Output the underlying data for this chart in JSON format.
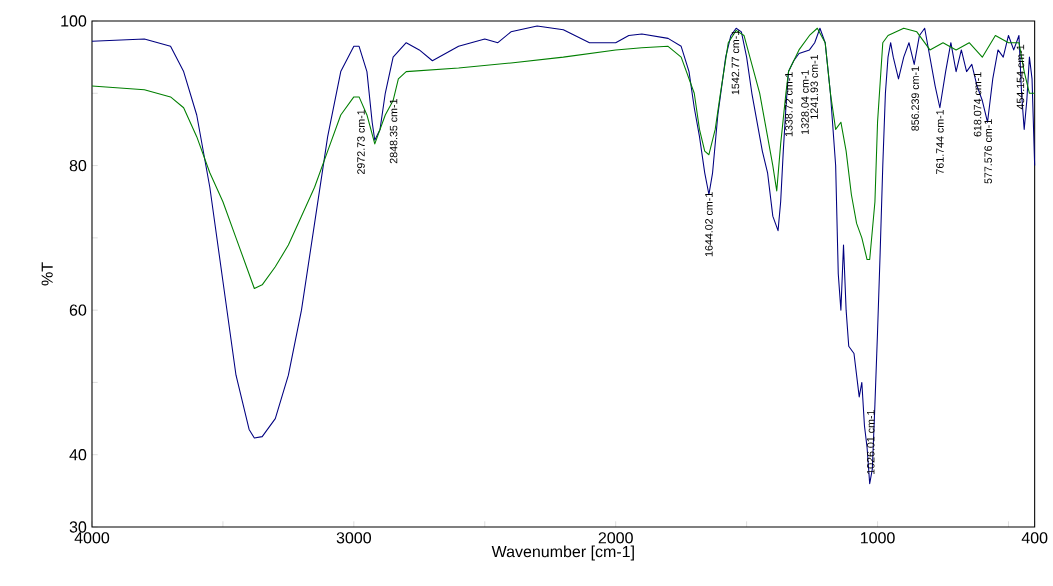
{
  "chart_data": {
    "type": "line",
    "xlabel": "Wavenumber [cm-1]",
    "ylabel": "%T",
    "xlim": [
      4000,
      400
    ],
    "ylim": [
      30,
      100
    ],
    "xticks": [
      4000,
      {
        "value": 3500,
        "label": null
      },
      3000,
      {
        "value": 2500,
        "label": null
      },
      2000,
      {
        "value": 1500,
        "label": null
      },
      1000,
      {
        "value": 500,
        "label": null
      },
      400
    ],
    "yticks": [
      30,
      40,
      {
        "value": 50,
        "label": null
      },
      60,
      {
        "value": 70,
        "label": null
      },
      80,
      {
        "value": 90,
        "label": null
      },
      100
    ],
    "grid": false,
    "marker": "none",
    "line_style": "solid",
    "series": [
      {
        "color": "#000080",
        "x": [
          4000,
          3800,
          3700,
          3650,
          3600,
          3550,
          3500,
          3450,
          3400,
          3380,
          3350,
          3300,
          3250,
          3200,
          3150,
          3100,
          3050,
          3000,
          2980,
          2950,
          2930,
          2920,
          2900,
          2880,
          2850,
          2800,
          2750,
          2700,
          2650,
          2600,
          2500,
          2450,
          2400,
          2300,
          2200,
          2100,
          2000,
          1950,
          1900,
          1800,
          1750,
          1720,
          1700,
          1680,
          1660,
          1644,
          1630,
          1610,
          1580,
          1560,
          1540,
          1520,
          1500,
          1480,
          1460,
          1440,
          1420,
          1400,
          1390,
          1380,
          1370,
          1360,
          1350,
          1340,
          1320,
          1300,
          1260,
          1240,
          1220,
          1200,
          1180,
          1160,
          1150,
          1140,
          1130,
          1120,
          1110,
          1090,
          1070,
          1060,
          1050,
          1040,
          1030,
          1020,
          1010,
          1000,
          990,
          980,
          970,
          960,
          950,
          940,
          920,
          900,
          880,
          860,
          840,
          820,
          800,
          780,
          762,
          740,
          720,
          700,
          680,
          660,
          640,
          620,
          600,
          580,
          560,
          540,
          520,
          500,
          480,
          460,
          450,
          440,
          430,
          420,
          410,
          400
        ],
        "values": [
          97.2,
          97.5,
          96.5,
          93,
          87,
          77,
          64,
          51,
          43.5,
          42.3,
          42.5,
          45,
          51,
          60,
          72,
          84,
          93,
          96.5,
          96.5,
          93,
          86,
          83.5,
          85,
          90,
          95,
          97,
          96,
          94.5,
          95.5,
          96.5,
          97.5,
          97,
          98.5,
          99.3,
          98.8,
          97,
          97,
          98,
          98.2,
          97.6,
          96.5,
          93,
          88,
          84,
          79,
          76,
          79,
          87,
          95,
          98,
          99,
          98.5,
          95,
          90,
          86,
          82,
          79,
          73,
          72,
          71,
          75,
          82,
          88,
          93,
          94.5,
          95.5,
          96,
          97,
          99,
          97,
          90,
          80,
          65,
          60,
          69,
          60,
          55,
          54,
          48,
          50,
          44,
          41,
          36,
          38,
          47,
          57,
          68,
          80,
          90,
          95,
          97,
          95,
          92,
          95,
          97,
          94,
          98,
          99,
          95,
          91,
          88,
          93,
          97,
          93,
          96,
          93,
          94,
          91,
          89,
          86,
          92,
          96,
          95,
          98,
          96,
          98,
          90,
          85,
          89,
          95,
          92,
          80
        ]
      },
      {
        "color": "#007f00",
        "x": [
          4000,
          3800,
          3700,
          3650,
          3600,
          3550,
          3500,
          3450,
          3400,
          3380,
          3350,
          3300,
          3250,
          3200,
          3150,
          3100,
          3050,
          3000,
          2980,
          2950,
          2920,
          2880,
          2850,
          2830,
          2800,
          2600,
          2400,
          2200,
          2000,
          1900,
          1800,
          1750,
          1700,
          1680,
          1660,
          1644,
          1620,
          1600,
          1570,
          1540,
          1510,
          1480,
          1450,
          1420,
          1400,
          1385,
          1370,
          1350,
          1340,
          1300,
          1260,
          1230,
          1200,
          1180,
          1160,
          1140,
          1120,
          1100,
          1080,
          1060,
          1040,
          1030,
          1010,
          1000,
          980,
          960,
          900,
          850,
          800,
          750,
          700,
          650,
          600,
          550,
          500,
          460,
          440,
          420,
          400
        ],
        "values": [
          91,
          90.5,
          89.5,
          88,
          84,
          79,
          75,
          70,
          65,
          63,
          63.5,
          66,
          69,
          73,
          77,
          82,
          87,
          89.5,
          89.5,
          87,
          83,
          87,
          89,
          92,
          93,
          93.5,
          94.2,
          95,
          96,
          96.3,
          96.5,
          95,
          90,
          85,
          82,
          81.5,
          85,
          90,
          97,
          98.7,
          98,
          94,
          90,
          84,
          80,
          76.5,
          83,
          90,
          93,
          96,
          98,
          99,
          97,
          90,
          85,
          86,
          82,
          76,
          72,
          70,
          67,
          67,
          75,
          86,
          97,
          98,
          99,
          98.5,
          96,
          97,
          96,
          97,
          95,
          98,
          97,
          97,
          93,
          90,
          90
        ]
      }
    ],
    "annotations": [
      {
        "text": "2972.73 cm-1",
        "x": 2972.73,
        "y": 88
      },
      {
        "text": "2848.35 cm-1",
        "x": 2848.35,
        "y": 89.5
      },
      {
        "text": "1644.02 cm-1",
        "x": 1644.02,
        "y": 76.6
      },
      {
        "text": "1542.77 cm-1",
        "x": 1542.77,
        "y": 99
      },
      {
        "text": "1338.72 cm-1",
        "x": 1338.72,
        "y": 93.2
      },
      {
        "text": "1328.04 cm-1",
        "x": 1328.04,
        "y": 93.5
      },
      {
        "text": "1241.93 cm-1",
        "x": 1241.93,
        "y": 95.6
      },
      {
        "text": "1026.01 cm-1",
        "x": 1026.01,
        "y": 37
      },
      {
        "text": "856.239 cm-1",
        "x": 856.239,
        "y": 94
      },
      {
        "text": "761.744 cm-1",
        "x": 761.744,
        "y": 88
      },
      {
        "text": "618.074 cm-1",
        "x": 618.074,
        "y": 93.2
      },
      {
        "text": "577.576 cm-1",
        "x": 577.576,
        "y": 86.7
      },
      {
        "text": "454.154 cm-1",
        "x": 454.154,
        "y": 97
      }
    ]
  }
}
